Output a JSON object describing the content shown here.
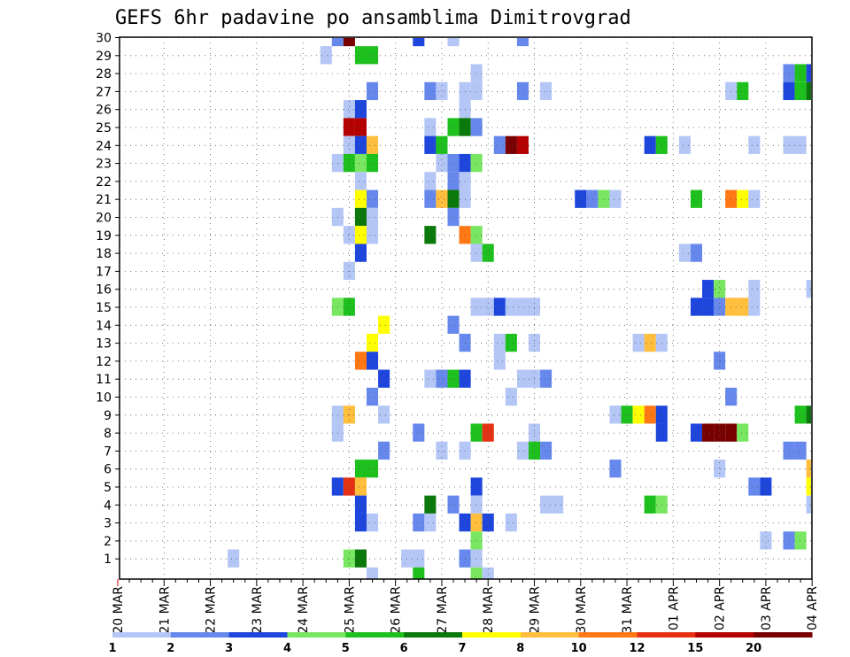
{
  "chart_data": {
    "type": "heatmap",
    "title": "GEFS 6hr padavine po ansamblima Dimitrovgrad",
    "y_categories": [
      "1",
      "2",
      "3",
      "4",
      "5",
      "6",
      "7",
      "8",
      "9",
      "10",
      "11",
      "12",
      "13",
      "14",
      "15",
      "16",
      "17",
      "18",
      "19",
      "20",
      "21",
      "22",
      "23",
      "24",
      "25",
      "26",
      "27",
      "28",
      "29",
      "30"
    ],
    "x_tick_labels": [
      "20 MAR",
      "21 MAR",
      "22 MAR",
      "23 MAR",
      "24 MAR",
      "25 MAR",
      "26 MAR",
      "27 MAR",
      "28 MAR",
      "29 MAR",
      "30 MAR",
      "31 MAR",
      "01 APR",
      "02 APR",
      "03 APR",
      "04 APR"
    ],
    "x_range": [
      0,
      60
    ],
    "grid": true,
    "colorbar": {
      "labels": [
        "1",
        "2",
        "3",
        "4",
        "5",
        "6",
        "7",
        "8",
        "10",
        "12",
        "15",
        "20"
      ],
      "colors": [
        "#b4c6f5",
        "#6688ec",
        "#1e46dc",
        "#78e660",
        "#1ec01e",
        "#0a780a",
        "#ffff00",
        "#ffbe3c",
        "#ff7814",
        "#e63214",
        "#b40000",
        "#780000"
      ]
    },
    "cells": [
      [
        30,
        19,
        1
      ],
      [
        30,
        20,
        11
      ],
      [
        30,
        26,
        2
      ],
      [
        30,
        29,
        0
      ],
      [
        30,
        35,
        1
      ],
      [
        29,
        18,
        0
      ],
      [
        29,
        21,
        4
      ],
      [
        29,
        22,
        4
      ],
      [
        28,
        31,
        0
      ],
      [
        28,
        58,
        1
      ],
      [
        28,
        59,
        4
      ],
      [
        28,
        60,
        2
      ],
      [
        27,
        22,
        1
      ],
      [
        27,
        27,
        1
      ],
      [
        27,
        28,
        0
      ],
      [
        27,
        30,
        0
      ],
      [
        27,
        31,
        0
      ],
      [
        27,
        35,
        1
      ],
      [
        27,
        37,
        0
      ],
      [
        27,
        53,
        0
      ],
      [
        27,
        54,
        4
      ],
      [
        27,
        58,
        2
      ],
      [
        27,
        59,
        4
      ],
      [
        27,
        60,
        5
      ],
      [
        26,
        20,
        0
      ],
      [
        26,
        21,
        2
      ],
      [
        26,
        30,
        0
      ],
      [
        25,
        20,
        10
      ],
      [
        25,
        21,
        10
      ],
      [
        25,
        27,
        0
      ],
      [
        25,
        29,
        4
      ],
      [
        25,
        30,
        5
      ],
      [
        25,
        31,
        1
      ],
      [
        24,
        20,
        0
      ],
      [
        24,
        21,
        2
      ],
      [
        24,
        22,
        7
      ],
      [
        24,
        27,
        2
      ],
      [
        24,
        28,
        4
      ],
      [
        24,
        33,
        1
      ],
      [
        24,
        34,
        11
      ],
      [
        24,
        35,
        10
      ],
      [
        24,
        46,
        2
      ],
      [
        24,
        47,
        4
      ],
      [
        24,
        49,
        0
      ],
      [
        24,
        55,
        0
      ],
      [
        24,
        58,
        0
      ],
      [
        24,
        59,
        0
      ],
      [
        23,
        19,
        0
      ],
      [
        23,
        20,
        4
      ],
      [
        23,
        21,
        3
      ],
      [
        23,
        22,
        4
      ],
      [
        23,
        28,
        0
      ],
      [
        23,
        29,
        1
      ],
      [
        23,
        30,
        2
      ],
      [
        23,
        31,
        3
      ],
      [
        22,
        21,
        0
      ],
      [
        22,
        27,
        0
      ],
      [
        22,
        29,
        1
      ],
      [
        22,
        30,
        0
      ],
      [
        21,
        21,
        6
      ],
      [
        21,
        22,
        1
      ],
      [
        21,
        27,
        1
      ],
      [
        21,
        28,
        7
      ],
      [
        21,
        29,
        5
      ],
      [
        21,
        30,
        0
      ],
      [
        21,
        40,
        2
      ],
      [
        21,
        41,
        1
      ],
      [
        21,
        42,
        3
      ],
      [
        21,
        43,
        0
      ],
      [
        21,
        50,
        4
      ],
      [
        21,
        53,
        8
      ],
      [
        21,
        54,
        6
      ],
      [
        21,
        55,
        0
      ],
      [
        20,
        19,
        0
      ],
      [
        20,
        21,
        5
      ],
      [
        20,
        22,
        0
      ],
      [
        20,
        29,
        1
      ],
      [
        19,
        20,
        0
      ],
      [
        19,
        21,
        6
      ],
      [
        19,
        22,
        0
      ],
      [
        19,
        27,
        5
      ],
      [
        19,
        30,
        8
      ],
      [
        19,
        31,
        3
      ],
      [
        18,
        21,
        2
      ],
      [
        18,
        31,
        0
      ],
      [
        18,
        32,
        4
      ],
      [
        18,
        49,
        0
      ],
      [
        18,
        50,
        1
      ],
      [
        17,
        20,
        0
      ],
      [
        16,
        51,
        2
      ],
      [
        16,
        52,
        3
      ],
      [
        16,
        55,
        0
      ],
      [
        16,
        60,
        0
      ],
      [
        15,
        19,
        3
      ],
      [
        15,
        20,
        4
      ],
      [
        15,
        31,
        0
      ],
      [
        15,
        32,
        0
      ],
      [
        15,
        33,
        2
      ],
      [
        15,
        34,
        0
      ],
      [
        15,
        35,
        0
      ],
      [
        15,
        36,
        0
      ],
      [
        15,
        50,
        2
      ],
      [
        15,
        51,
        2
      ],
      [
        15,
        52,
        1
      ],
      [
        15,
        53,
        7
      ],
      [
        15,
        54,
        7
      ],
      [
        15,
        55,
        0
      ],
      [
        14,
        23,
        6
      ],
      [
        14,
        29,
        1
      ],
      [
        13,
        22,
        6
      ],
      [
        13,
        30,
        1
      ],
      [
        13,
        33,
        0
      ],
      [
        13,
        34,
        4
      ],
      [
        13,
        36,
        0
      ],
      [
        13,
        45,
        0
      ],
      [
        13,
        46,
        7
      ],
      [
        13,
        47,
        0
      ],
      [
        12,
        21,
        8
      ],
      [
        12,
        22,
        2
      ],
      [
        12,
        33,
        0
      ],
      [
        12,
        52,
        1
      ],
      [
        11,
        23,
        2
      ],
      [
        11,
        27,
        0
      ],
      [
        11,
        28,
        1
      ],
      [
        11,
        29,
        4
      ],
      [
        11,
        30,
        2
      ],
      [
        11,
        35,
        0
      ],
      [
        11,
        36,
        0
      ],
      [
        11,
        37,
        1
      ],
      [
        10,
        22,
        1
      ],
      [
        10,
        34,
        0
      ],
      [
        10,
        53,
        1
      ],
      [
        9,
        19,
        0
      ],
      [
        9,
        20,
        7
      ],
      [
        9,
        23,
        0
      ],
      [
        9,
        43,
        0
      ],
      [
        9,
        44,
        4
      ],
      [
        9,
        45,
        6
      ],
      [
        9,
        46,
        8
      ],
      [
        9,
        47,
        2
      ],
      [
        9,
        59,
        4
      ],
      [
        9,
        60,
        5
      ],
      [
        8,
        19,
        0
      ],
      [
        8,
        26,
        1
      ],
      [
        8,
        31,
        4
      ],
      [
        8,
        32,
        9
      ],
      [
        8,
        36,
        0
      ],
      [
        8,
        47,
        2
      ],
      [
        8,
        50,
        2
      ],
      [
        8,
        51,
        11
      ],
      [
        8,
        52,
        11
      ],
      [
        8,
        53,
        11
      ],
      [
        8,
        54,
        3
      ],
      [
        7,
        23,
        1
      ],
      [
        7,
        28,
        0
      ],
      [
        7,
        30,
        0
      ],
      [
        7,
        35,
        0
      ],
      [
        7,
        36,
        4
      ],
      [
        7,
        37,
        1
      ],
      [
        7,
        58,
        1
      ],
      [
        7,
        59,
        1
      ],
      [
        6,
        21,
        4
      ],
      [
        6,
        22,
        4
      ],
      [
        6,
        43,
        1
      ],
      [
        6,
        52,
        0
      ],
      [
        6,
        60,
        7
      ],
      [
        5,
        19,
        2
      ],
      [
        5,
        20,
        9
      ],
      [
        5,
        21,
        7
      ],
      [
        5,
        31,
        2
      ],
      [
        5,
        55,
        1
      ],
      [
        5,
        56,
        2
      ],
      [
        5,
        60,
        6
      ],
      [
        4,
        21,
        2
      ],
      [
        4,
        27,
        5
      ],
      [
        4,
        29,
        1
      ],
      [
        4,
        31,
        0
      ],
      [
        4,
        37,
        0
      ],
      [
        4,
        38,
        0
      ],
      [
        4,
        46,
        4
      ],
      [
        4,
        47,
        3
      ],
      [
        4,
        60,
        0
      ],
      [
        3,
        21,
        2
      ],
      [
        3,
        22,
        0
      ],
      [
        3,
        26,
        1
      ],
      [
        3,
        27,
        0
      ],
      [
        3,
        30,
        2
      ],
      [
        3,
        31,
        7
      ],
      [
        3,
        32,
        2
      ],
      [
        3,
        34,
        0
      ],
      [
        2,
        31,
        3
      ],
      [
        2,
        56,
        0
      ],
      [
        2,
        58,
        1
      ],
      [
        2,
        59,
        3
      ],
      [
        1,
        10,
        0
      ],
      [
        1,
        20,
        3
      ],
      [
        1,
        21,
        5
      ],
      [
        1,
        25,
        0
      ],
      [
        1,
        26,
        0
      ],
      [
        1,
        30,
        1
      ],
      [
        1,
        31,
        0
      ],
      [
        0,
        22,
        0
      ],
      [
        0,
        26,
        4
      ],
      [
        0,
        31,
        3
      ],
      [
        0,
        32,
        0
      ]
    ]
  }
}
